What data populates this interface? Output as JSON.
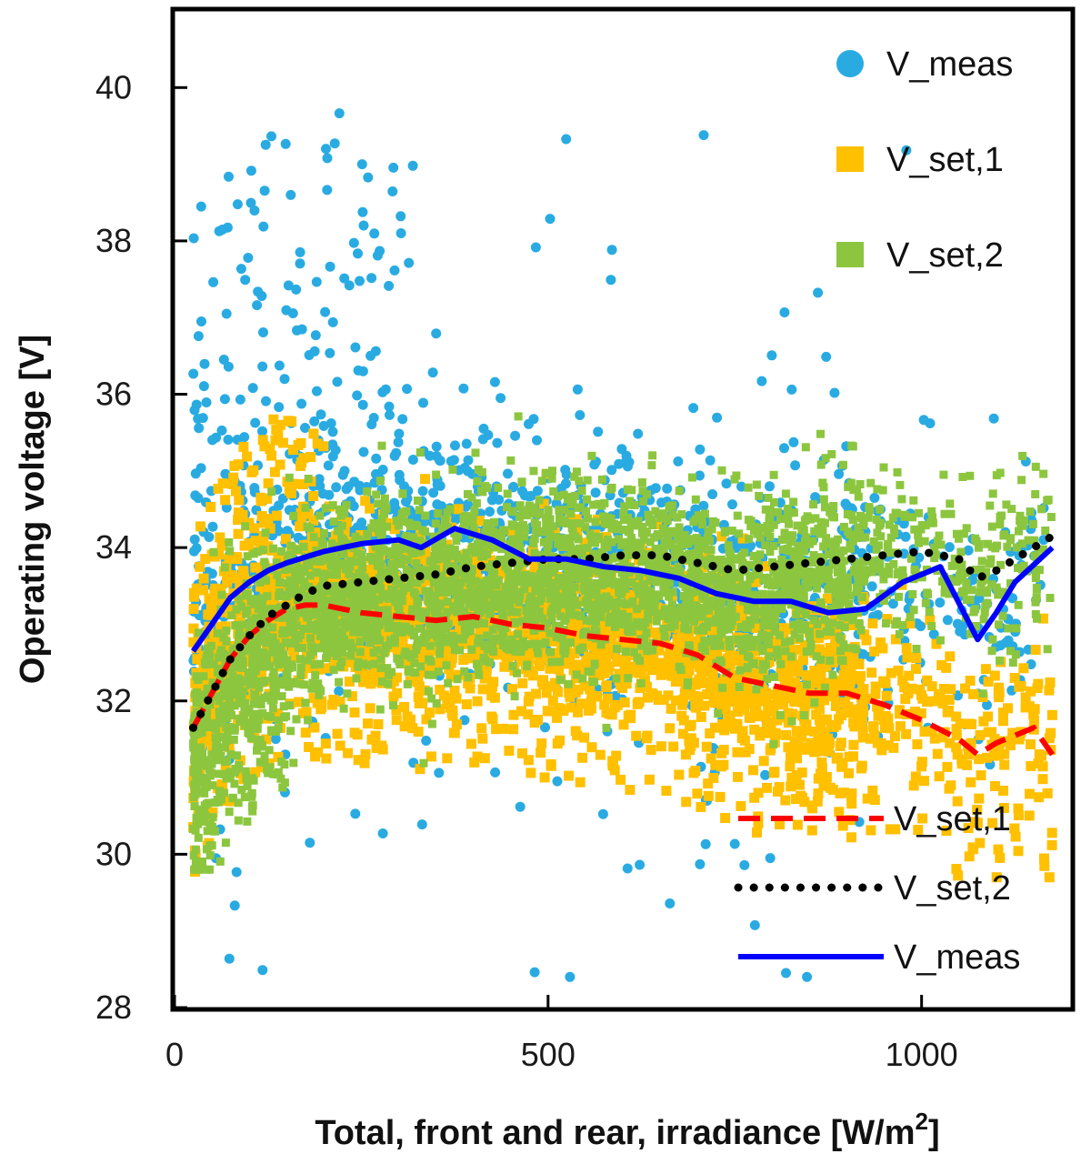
{
  "chart_data": {
    "type": "scatter",
    "title": "",
    "xlabel": "Total, front and rear, irradiance [W/m",
    "xlabel_sup": "2",
    "xlabel_end": "]",
    "ylabel": "Operating voltage [V]",
    "xlim": [
      0,
      1200
    ],
    "ylim": [
      28,
      41
    ],
    "x_ticks": [
      0,
      500,
      1000
    ],
    "y_ticks": [
      28,
      30,
      32,
      34,
      36,
      38,
      40
    ],
    "x_tick_labels": [
      "0",
      "500",
      "1000"
    ],
    "y_tick_labels": [
      "28",
      "30",
      "32",
      "34",
      "36",
      "38",
      "40"
    ],
    "grid": false,
    "colors": {
      "meas_points": "#29abe2",
      "set1_points": "#ffc000",
      "set2_points": "#8cc63f",
      "set1_line": "#ff0000",
      "set2_line": "#000000",
      "meas_line": "#0000ff"
    },
    "scatter_series": [
      {
        "name": "V_meas",
        "marker": "circle",
        "count": 1400
      },
      {
        "name": "V_set,1",
        "marker": "square",
        "count": 2600
      },
      {
        "name": "V_set,2",
        "marker": "square",
        "count": 3200
      }
    ],
    "line_series": [
      {
        "name": "V_set,1",
        "style": "dashed",
        "x": [
          25,
          50,
          75,
          100,
          125,
          150,
          175,
          200,
          250,
          300,
          350,
          400,
          450,
          500,
          550,
          600,
          650,
          700,
          750,
          800,
          850,
          900,
          950,
          1000,
          1050,
          1075,
          1100,
          1150,
          1175
        ],
        "y": [
          31.65,
          32.1,
          32.55,
          32.85,
          33.05,
          33.2,
          33.25,
          33.25,
          33.15,
          33.1,
          33.05,
          33.1,
          33.0,
          32.95,
          32.85,
          32.8,
          32.75,
          32.6,
          32.3,
          32.2,
          32.1,
          32.1,
          31.95,
          31.75,
          31.5,
          31.3,
          31.45,
          31.65,
          31.3
        ]
      },
      {
        "name": "V_set,2",
        "style": "dotted",
        "x": [
          25,
          50,
          75,
          100,
          125,
          150,
          175,
          200,
          250,
          300,
          350,
          400,
          450,
          500,
          550,
          600,
          650,
          700,
          750,
          800,
          850,
          900,
          950,
          1000,
          1050,
          1075,
          1100,
          1150,
          1175
        ],
        "y": [
          31.65,
          32.1,
          32.55,
          32.85,
          33.1,
          33.25,
          33.4,
          33.5,
          33.55,
          33.6,
          33.65,
          33.75,
          33.8,
          33.85,
          33.85,
          33.9,
          33.9,
          33.8,
          33.7,
          33.75,
          33.8,
          33.85,
          33.9,
          33.95,
          33.85,
          33.6,
          33.7,
          34.0,
          34.15
        ]
      },
      {
        "name": "V_meas",
        "style": "solid",
        "x": [
          25,
          50,
          75,
          100,
          125,
          150,
          200,
          250,
          300,
          330,
          375,
          425,
          475,
          525,
          575,
          625,
          675,
          725,
          775,
          825,
          875,
          925,
          975,
          1000,
          1025,
          1075,
          1100,
          1125,
          1175
        ],
        "y": [
          32.65,
          33.0,
          33.35,
          33.55,
          33.7,
          33.8,
          33.95,
          34.05,
          34.1,
          34.0,
          34.25,
          34.1,
          33.85,
          33.85,
          33.75,
          33.7,
          33.6,
          33.4,
          33.3,
          33.3,
          33.15,
          33.2,
          33.55,
          33.65,
          33.75,
          32.8,
          33.15,
          33.55,
          34.0
        ]
      }
    ],
    "legend_top": [
      {
        "label": "V_meas",
        "marker": "circle"
      },
      {
        "label": "V_set,1",
        "marker": "square"
      },
      {
        "label": "V_set,2",
        "marker": "square"
      }
    ],
    "legend_bottom": [
      {
        "label": "V_set,1",
        "style": "dashed"
      },
      {
        "label": "V_set,2",
        "style": "dotted"
      },
      {
        "label": "V_meas",
        "style": "solid"
      }
    ]
  }
}
